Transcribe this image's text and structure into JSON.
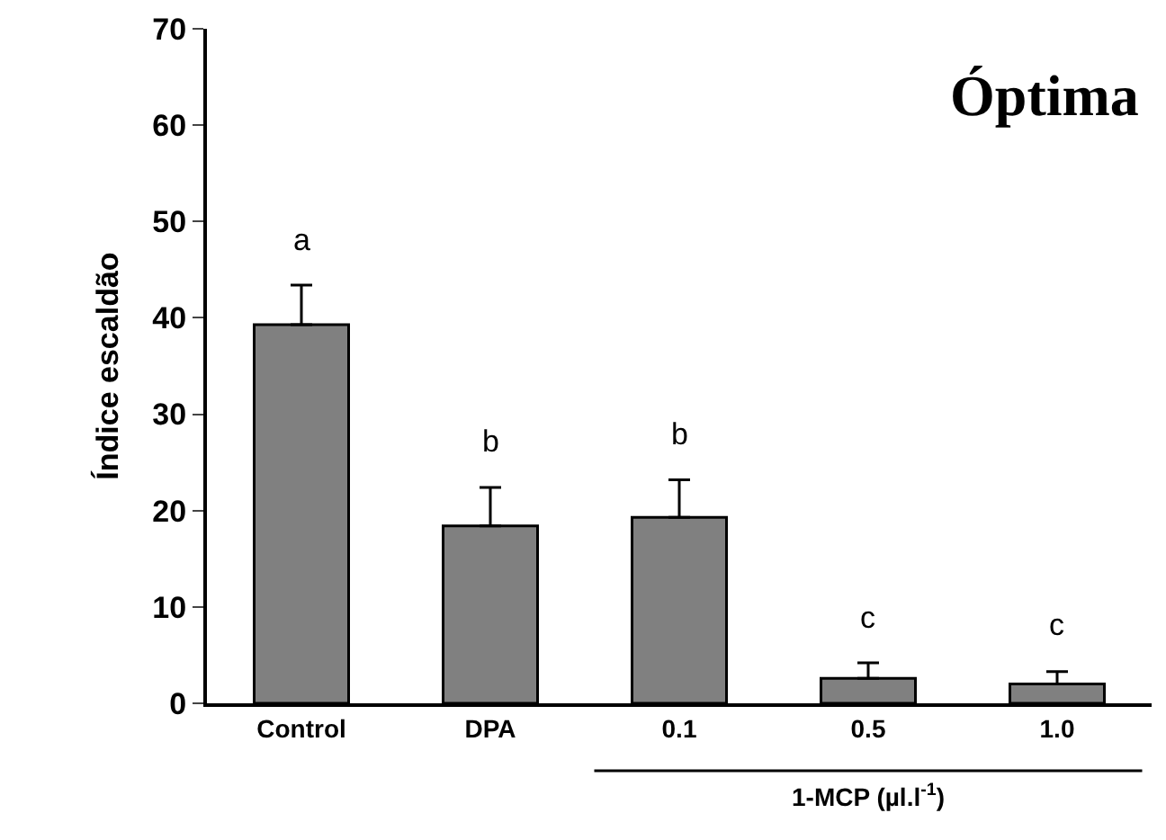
{
  "chart_data": {
    "type": "bar",
    "categories": [
      "Control",
      "DPA",
      "0.1",
      "0.5",
      "1.0"
    ],
    "values": [
      39.3,
      18.4,
      19.3,
      2.6,
      2.0
    ],
    "errors": [
      [
        39.3,
        43.4
      ],
      [
        18.4,
        22.4
      ],
      [
        19.3,
        23.2
      ],
      [
        2.6,
        4.2
      ],
      [
        2.0,
        3.3
      ]
    ],
    "color": "#808080",
    "ylabel": "Índice escaldão",
    "xlabel": "1-MCP (µl.l$^{-1}$)",
    "ylim": [
      0,
      70
    ],
    "yticks": [
      0,
      10,
      20,
      30,
      40,
      50,
      60,
      70
    ],
    "annotations": [
      "Óptima",
      {
        "text": "a",
        "x": "Control",
        "y": 43.4
      },
      {
        "text": "b",
        "x": "DPA",
        "y": 22.4
      },
      {
        "text": "b",
        "x": "0.1",
        "y": 23.2
      },
      {
        "text": "c",
        "x": "0.5",
        "y": 4.2
      },
      {
        "text": "c",
        "x": "1.0",
        "y": 3.3
      }
    ]
  }
}
